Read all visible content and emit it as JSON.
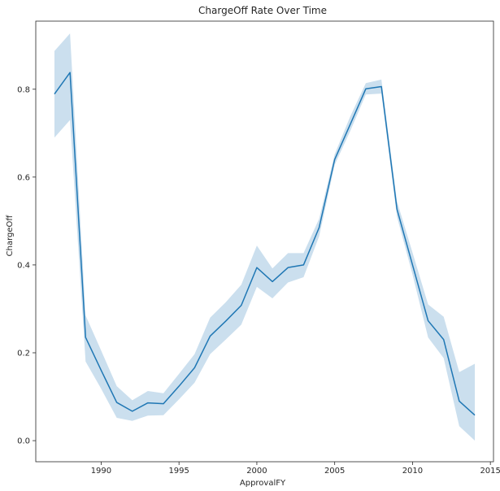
{
  "chart_data": {
    "type": "line",
    "title": "ChargeOff Rate Over Time",
    "xlabel": "ApprovalFY",
    "ylabel": "ChargeOff",
    "xlim": [
      1985.8,
      2015.2
    ],
    "ylim": [
      -0.048,
      0.955
    ],
    "x_ticks": [
      1990,
      1995,
      2000,
      2005,
      2010,
      2015
    ],
    "y_ticks": [
      0.0,
      0.2,
      0.4,
      0.6,
      0.8
    ],
    "grid": false,
    "legend": "none",
    "colors": {
      "line": "#1f77b4",
      "band": "#a9c9e2"
    },
    "x": [
      1987,
      1988,
      1989,
      1990,
      1991,
      1992,
      1993,
      1994,
      1995,
      1996,
      1997,
      1998,
      1999,
      2000,
      2001,
      2002,
      2003,
      2004,
      2005,
      2006,
      2007,
      2008,
      2009,
      2010,
      2011,
      2012,
      2013,
      2014
    ],
    "series": [
      {
        "values": [
          0.789,
          0.838,
          0.235,
          0.16,
          0.087,
          0.067,
          0.086,
          0.084,
          0.124,
          0.166,
          0.238,
          0.272,
          0.308,
          0.394,
          0.362,
          0.394,
          0.4,
          0.485,
          0.64,
          0.72,
          0.801,
          0.806,
          0.527,
          0.4,
          0.273,
          0.23,
          0.09,
          0.058
        ],
        "ci_lower": [
          0.69,
          0.73,
          0.18,
          0.118,
          0.052,
          0.045,
          0.057,
          0.058,
          0.094,
          0.132,
          0.197,
          0.23,
          0.264,
          0.35,
          0.324,
          0.36,
          0.372,
          0.465,
          0.628,
          0.705,
          0.788,
          0.79,
          0.51,
          0.378,
          0.235,
          0.188,
          0.033,
          0.0
        ],
        "ci_upper": [
          0.887,
          0.927,
          0.285,
          0.205,
          0.124,
          0.092,
          0.113,
          0.108,
          0.152,
          0.197,
          0.28,
          0.315,
          0.355,
          0.444,
          0.392,
          0.427,
          0.427,
          0.505,
          0.652,
          0.738,
          0.814,
          0.822,
          0.545,
          0.428,
          0.31,
          0.282,
          0.156,
          0.175
        ]
      }
    ]
  }
}
